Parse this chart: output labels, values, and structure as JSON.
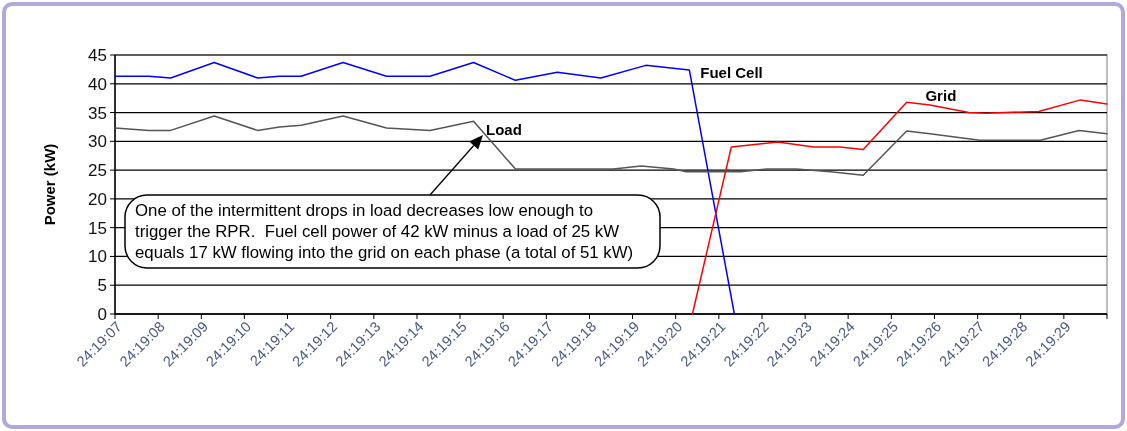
{
  "chart_data": {
    "type": "line",
    "ylabel": "Power (kW)",
    "xlim": [
      24.318611,
      24.325
    ],
    "xticks": [
      {
        "value": 24.318611,
        "label": "24:19:07"
      },
      {
        "value": 24.318889,
        "label": "24:19:08"
      },
      {
        "value": 24.319167,
        "label": "24:19:09"
      },
      {
        "value": 24.319444,
        "label": "24:19:10"
      },
      {
        "value": 24.319722,
        "label": "24:19:11"
      },
      {
        "value": 24.32,
        "label": "24:19:12"
      },
      {
        "value": 24.320278,
        "label": "24:19:13"
      },
      {
        "value": 24.320556,
        "label": "24:19:14"
      },
      {
        "value": 24.320833,
        "label": "24:19:15"
      },
      {
        "value": 24.321111,
        "label": "24:19:16"
      },
      {
        "value": 24.321389,
        "label": "24:19:17"
      },
      {
        "value": 24.321667,
        "label": "24:19:18"
      },
      {
        "value": 24.321944,
        "label": "24:19:19"
      },
      {
        "value": 24.322222,
        "label": "24:19:20"
      },
      {
        "value": 24.3225,
        "label": "24:19:21"
      },
      {
        "value": 24.322778,
        "label": "24:19:22"
      },
      {
        "value": 24.323056,
        "label": "24:19:23"
      },
      {
        "value": 24.323333,
        "label": "24:19:24"
      },
      {
        "value": 24.323611,
        "label": "24:19:25"
      },
      {
        "value": 24.323889,
        "label": "24:19:26"
      },
      {
        "value": 24.324167,
        "label": "24:19:27"
      },
      {
        "value": 24.324444,
        "label": "24:19:28"
      },
      {
        "value": 24.324722,
        "label": "24:19:29"
      },
      {
        "value": 24.325,
        "label": null
      }
    ],
    "ylim": [
      0,
      45
    ],
    "yticks": [
      0,
      5,
      10,
      15,
      20,
      25,
      30,
      35,
      40,
      45
    ],
    "grid": "y",
    "marker": "none",
    "line_style": "solid",
    "legend": false,
    "series": [
      {
        "name": "Fuel Cell",
        "color": "#0000ff",
        "x": [
          24.318611,
          24.31883,
          24.31897,
          24.31925,
          24.31953,
          24.31967,
          24.31981,
          24.32008,
          24.32036,
          24.32064,
          24.32092,
          24.32119,
          24.32146,
          24.32174,
          24.32203,
          24.32231,
          24.3226
        ],
        "values": [
          41.3,
          41.3,
          41,
          43.7,
          41,
          41.3,
          41.3,
          43.7,
          41.3,
          41.3,
          43.7,
          40.6,
          42,
          41,
          43.2,
          42.4,
          0
        ]
      },
      {
        "name": "Load",
        "color": "#555555",
        "x": [
          24.318611,
          24.31883,
          24.31897,
          24.31925,
          24.31953,
          24.31967,
          24.31981,
          24.32008,
          24.32036,
          24.32064,
          24.32092,
          24.32119,
          24.32135,
          24.32182,
          24.322,
          24.32221,
          24.32229,
          24.32264,
          24.32281,
          24.323,
          24.32322,
          24.32343,
          24.32371,
          24.32386,
          24.32418,
          24.32457,
          24.32482,
          24.325
        ],
        "values": [
          32.3,
          31.9,
          31.9,
          34.4,
          31.9,
          32.5,
          32.8,
          34.4,
          32.3,
          31.9,
          33.5,
          25.2,
          25.2,
          25.2,
          25.7,
          25.2,
          24.7,
          24.7,
          25.2,
          25.2,
          24.7,
          24.1,
          31.8,
          31.3,
          30.2,
          30.2,
          31.9,
          31.3
        ]
      },
      {
        "name": "Grid",
        "color": "#ff0000",
        "x": [
          24.32233,
          24.32258,
          24.32288,
          24.32303,
          24.32311,
          24.32328,
          24.32343,
          24.32371,
          24.32386,
          24.32411,
          24.32422,
          24.32456,
          24.32483,
          24.325
        ],
        "values": [
          0,
          29,
          29.9,
          29.3,
          29,
          29,
          28.6,
          36.8,
          36.3,
          35,
          34.9,
          35.2,
          37.2,
          36.5
        ]
      }
    ],
    "annotations": [
      "One of the intermittent drops in load decreases low enough to trigger the RPR.  Fuel cell power of 42 kW minus a load of 25 kW equals 17 kW flowing into the grid on each phase (a total of 51 kW)"
    ]
  }
}
